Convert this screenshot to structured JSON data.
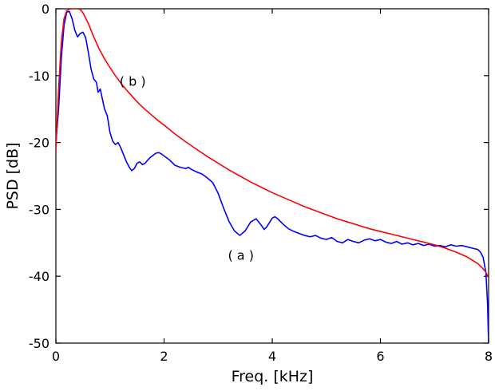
{
  "figure": {
    "background": "#ffffff",
    "box_color": "#000000"
  },
  "chart_data": {
    "type": "line",
    "title": "",
    "xlabel": "Freq. [kHz]",
    "ylabel": "PSD [dB]",
    "xlim": [
      0,
      8
    ],
    "ylim": [
      -50,
      0
    ],
    "xticks": [
      0,
      2,
      4,
      6,
      8
    ],
    "yticks": [
      0,
      -10,
      -20,
      -30,
      -40,
      -50
    ],
    "grid": false,
    "legend_position": "none",
    "series": [
      {
        "name": "(a)",
        "color": "#0000ff",
        "width": 1.6,
        "points": [
          [
            0,
            -20
          ],
          [
            0.05,
            -15
          ],
          [
            0.1,
            -7.5
          ],
          [
            0.15,
            -2.5
          ],
          [
            0.2,
            -0.5
          ],
          [
            0.25,
            -0.4
          ],
          [
            0.3,
            -1.5
          ],
          [
            0.35,
            -3.2
          ],
          [
            0.4,
            -4.2
          ],
          [
            0.45,
            -3.7
          ],
          [
            0.5,
            -3.5
          ],
          [
            0.55,
            -4.3
          ],
          [
            0.6,
            -6.5
          ],
          [
            0.65,
            -9
          ],
          [
            0.7,
            -10.5
          ],
          [
            0.75,
            -11
          ],
          [
            0.78,
            -12.5
          ],
          [
            0.82,
            -12
          ],
          [
            0.86,
            -13.5
          ],
          [
            0.9,
            -15
          ],
          [
            0.95,
            -16
          ],
          [
            1.0,
            -18.5
          ],
          [
            1.05,
            -19.8
          ],
          [
            1.1,
            -20.3
          ],
          [
            1.15,
            -20
          ],
          [
            1.2,
            -20.8
          ],
          [
            1.25,
            -21.8
          ],
          [
            1.3,
            -22.8
          ],
          [
            1.35,
            -23.6
          ],
          [
            1.4,
            -24.2
          ],
          [
            1.45,
            -23.9
          ],
          [
            1.5,
            -23.1
          ],
          [
            1.55,
            -22.9
          ],
          [
            1.6,
            -23.3
          ],
          [
            1.65,
            -23.1
          ],
          [
            1.7,
            -22.6
          ],
          [
            1.75,
            -22.2
          ],
          [
            1.8,
            -21.9
          ],
          [
            1.85,
            -21.6
          ],
          [
            1.9,
            -21.5
          ],
          [
            1.95,
            -21.7
          ],
          [
            2.0,
            -22
          ],
          [
            2.1,
            -22.6
          ],
          [
            2.2,
            -23.4
          ],
          [
            2.3,
            -23.7
          ],
          [
            2.4,
            -23.9
          ],
          [
            2.45,
            -23.7
          ],
          [
            2.5,
            -24
          ],
          [
            2.6,
            -24.4
          ],
          [
            2.7,
            -24.7
          ],
          [
            2.8,
            -25.3
          ],
          [
            2.9,
            -26
          ],
          [
            3.0,
            -27.6
          ],
          [
            3.1,
            -29.8
          ],
          [
            3.2,
            -31.8
          ],
          [
            3.3,
            -33.2
          ],
          [
            3.4,
            -33.9
          ],
          [
            3.5,
            -33.2
          ],
          [
            3.6,
            -31.9
          ],
          [
            3.7,
            -31.4
          ],
          [
            3.8,
            -32.4
          ],
          [
            3.85,
            -33
          ],
          [
            3.9,
            -32.6
          ],
          [
            4.0,
            -31.3
          ],
          [
            4.05,
            -31.1
          ],
          [
            4.1,
            -31.4
          ],
          [
            4.2,
            -32.2
          ],
          [
            4.3,
            -32.9
          ],
          [
            4.4,
            -33.3
          ],
          [
            4.5,
            -33.6
          ],
          [
            4.6,
            -33.9
          ],
          [
            4.7,
            -34.1
          ],
          [
            4.8,
            -33.9
          ],
          [
            4.9,
            -34.3
          ],
          [
            5.0,
            -34.5
          ],
          [
            5.1,
            -34.2
          ],
          [
            5.2,
            -34.8
          ],
          [
            5.3,
            -35
          ],
          [
            5.4,
            -34.5
          ],
          [
            5.5,
            -34.8
          ],
          [
            5.6,
            -35
          ],
          [
            5.7,
            -34.6
          ],
          [
            5.8,
            -34.4
          ],
          [
            5.9,
            -34.7
          ],
          [
            6.0,
            -34.5
          ],
          [
            6.1,
            -34.9
          ],
          [
            6.2,
            -35.1
          ],
          [
            6.3,
            -34.8
          ],
          [
            6.4,
            -35.2
          ],
          [
            6.5,
            -35
          ],
          [
            6.6,
            -35.3
          ],
          [
            6.7,
            -35.1
          ],
          [
            6.8,
            -35.4
          ],
          [
            6.9,
            -35.2
          ],
          [
            7.0,
            -35.5
          ],
          [
            7.1,
            -35.4
          ],
          [
            7.2,
            -35.6
          ],
          [
            7.3,
            -35.3
          ],
          [
            7.4,
            -35.5
          ],
          [
            7.5,
            -35.4
          ],
          [
            7.6,
            -35.6
          ],
          [
            7.7,
            -35.8
          ],
          [
            7.8,
            -36
          ],
          [
            7.85,
            -36.4
          ],
          [
            7.9,
            -37.2
          ],
          [
            7.95,
            -39.5
          ],
          [
            7.98,
            -44
          ],
          [
            8.0,
            -50
          ]
        ]
      },
      {
        "name": "(b)",
        "color": "#ff0000",
        "width": 1.6,
        "points": [
          [
            0,
            -21
          ],
          [
            0.05,
            -12
          ],
          [
            0.1,
            -5
          ],
          [
            0.15,
            -1.5
          ],
          [
            0.2,
            -0.3
          ],
          [
            0.25,
            -0.05
          ],
          [
            0.3,
            0
          ],
          [
            0.4,
            0
          ],
          [
            0.45,
            -0.1
          ],
          [
            0.5,
            -0.6
          ],
          [
            0.6,
            -2.2
          ],
          [
            0.7,
            -4.2
          ],
          [
            0.8,
            -6
          ],
          [
            0.9,
            -7.5
          ],
          [
            1.0,
            -8.8
          ],
          [
            1.1,
            -10
          ],
          [
            1.2,
            -11.1
          ],
          [
            1.3,
            -12.1
          ],
          [
            1.4,
            -13
          ],
          [
            1.5,
            -13.9
          ],
          [
            1.6,
            -14.7
          ],
          [
            1.7,
            -15.4
          ],
          [
            1.8,
            -16.1
          ],
          [
            1.9,
            -16.8
          ],
          [
            2.0,
            -17.4
          ],
          [
            2.2,
            -18.7
          ],
          [
            2.4,
            -19.9
          ],
          [
            2.6,
            -21
          ],
          [
            2.8,
            -22.1
          ],
          [
            3.0,
            -23.1
          ],
          [
            3.2,
            -24.1
          ],
          [
            3.4,
            -25
          ],
          [
            3.6,
            -25.9
          ],
          [
            3.8,
            -26.7
          ],
          [
            4.0,
            -27.5
          ],
          [
            4.2,
            -28.2
          ],
          [
            4.4,
            -28.9
          ],
          [
            4.6,
            -29.6
          ],
          [
            4.8,
            -30.2
          ],
          [
            5.0,
            -30.8
          ],
          [
            5.2,
            -31.4
          ],
          [
            5.4,
            -31.9
          ],
          [
            5.6,
            -32.4
          ],
          [
            5.8,
            -32.9
          ],
          [
            6.0,
            -33.3
          ],
          [
            6.2,
            -33.7
          ],
          [
            6.4,
            -34.1
          ],
          [
            6.6,
            -34.5
          ],
          [
            6.8,
            -34.9
          ],
          [
            7.0,
            -35.3
          ],
          [
            7.2,
            -35.8
          ],
          [
            7.4,
            -36.4
          ],
          [
            7.6,
            -37.1
          ],
          [
            7.8,
            -38.1
          ],
          [
            7.9,
            -38.9
          ],
          [
            7.95,
            -39.4
          ],
          [
            8.0,
            -40.2
          ]
        ]
      }
    ],
    "annotations": [
      {
        "text": "( b )",
        "x": 1.42,
        "y": -11.5
      },
      {
        "text": "( a )",
        "x": 3.42,
        "y": -37.5
      }
    ]
  }
}
